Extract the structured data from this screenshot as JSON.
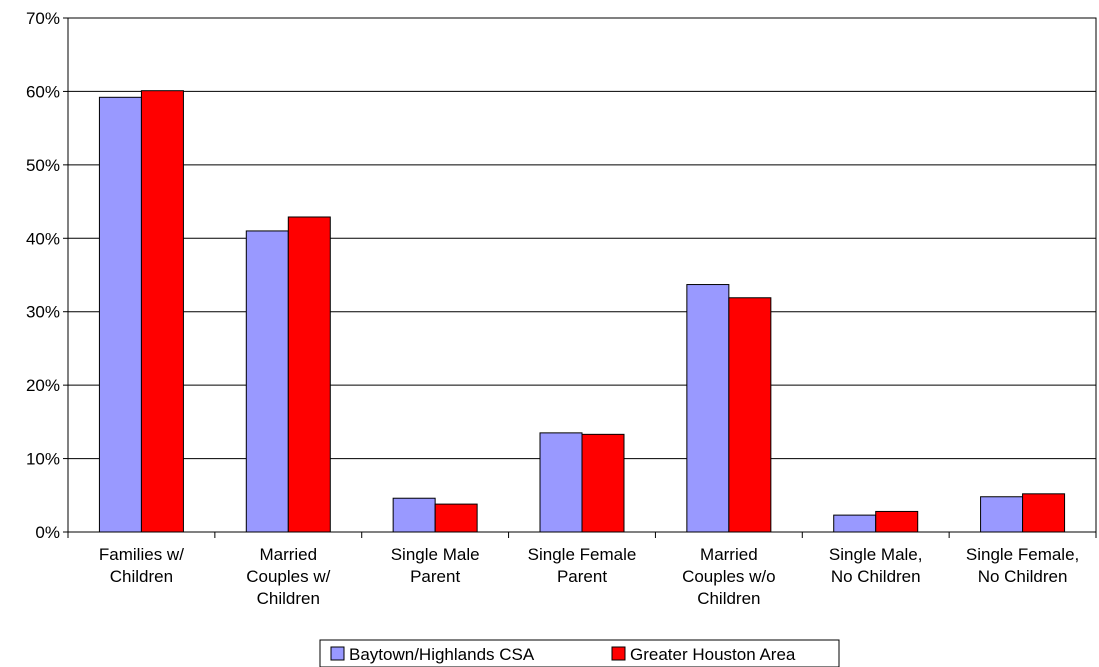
{
  "chart_data": {
    "type": "bar",
    "title": "",
    "xlabel": "",
    "ylabel": "",
    "ylim": [
      0,
      70
    ],
    "yticks": [
      "0%",
      "10%",
      "20%",
      "30%",
      "40%",
      "50%",
      "60%",
      "70%"
    ],
    "categories": [
      [
        "Families w/",
        "Children"
      ],
      [
        "Married",
        "Couples w/",
        "Children"
      ],
      [
        "Single Male",
        "Parent"
      ],
      [
        "Single Female",
        "Parent"
      ],
      [
        "Married",
        "Couples w/o",
        "Children"
      ],
      [
        "Single Male,",
        "No Children"
      ],
      [
        "Single Female,",
        "No Children"
      ]
    ],
    "series": [
      {
        "name": "Baytown/Highlands CSA",
        "color": "#9999ff",
        "values": [
          59.2,
          41.0,
          4.6,
          13.5,
          33.7,
          2.3,
          4.8
        ]
      },
      {
        "name": "Greater Houston Area",
        "color": "#ff0000",
        "values": [
          60.1,
          42.9,
          3.8,
          13.3,
          31.9,
          2.8,
          5.2
        ]
      }
    ],
    "grid": true,
    "legend_position": "bottom"
  }
}
